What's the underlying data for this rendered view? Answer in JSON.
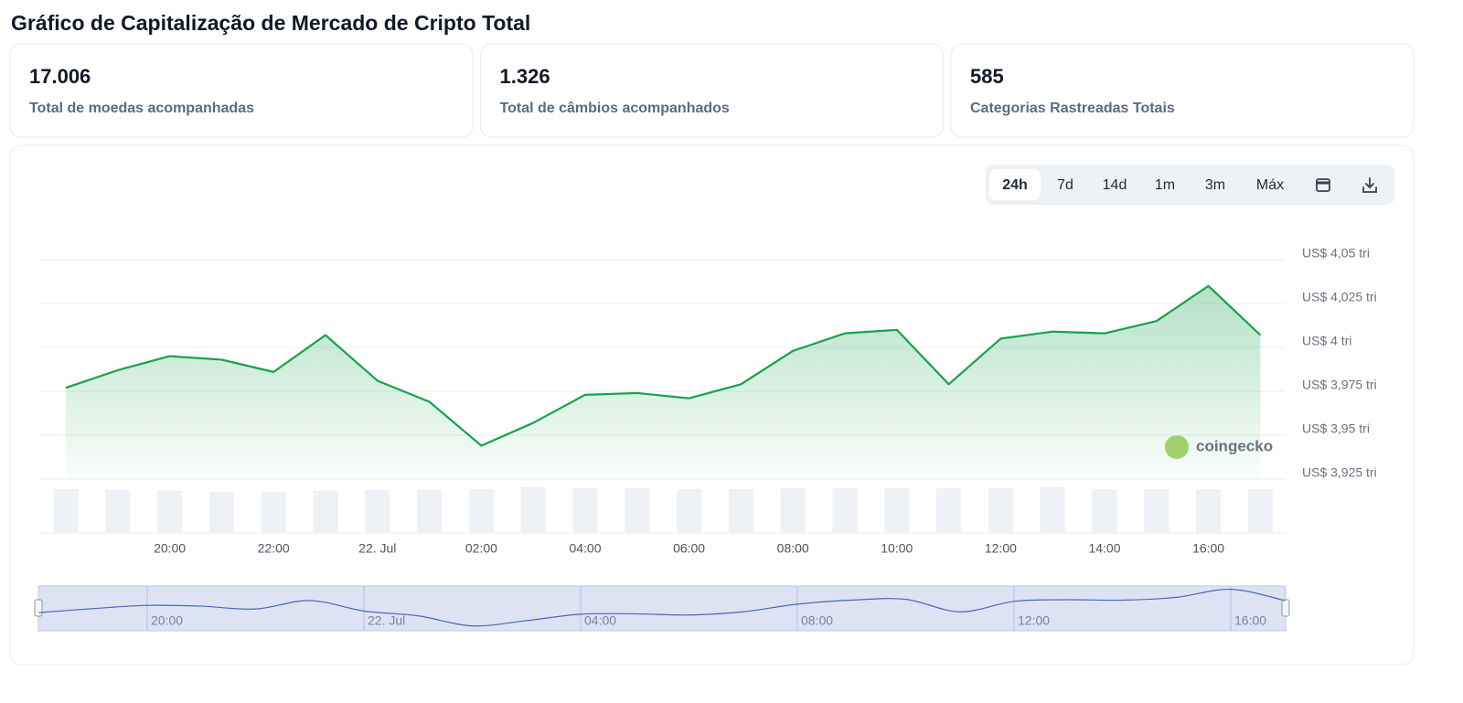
{
  "header": {
    "title": "Gráfico de Capitalização de Mercado de Cripto Total"
  },
  "stats": [
    {
      "value": "17.006",
      "label": "Total de moedas acompanhadas"
    },
    {
      "value": "1.326",
      "label": "Total de câmbios acompanhados"
    },
    {
      "value": "585",
      "label": "Categorias Rastreadas Totais"
    }
  ],
  "range_buttons": [
    "24h",
    "7d",
    "14d",
    "1m",
    "3m",
    "Máx"
  ],
  "chart_data": {
    "type": "line",
    "categories": [
      null,
      null,
      "20:00",
      null,
      "22:00",
      null,
      "22. Jul",
      null,
      "02:00",
      null,
      "04:00",
      null,
      "06:00",
      null,
      "08:00",
      null,
      "10:00",
      null,
      "12:00",
      null,
      "14:00",
      null,
      "16:00",
      null
    ],
    "values": [
      3.977,
      3.987,
      3.995,
      3.993,
      3.986,
      4.007,
      3.981,
      3.969,
      3.944,
      3.957,
      3.973,
      3.974,
      3.971,
      3.979,
      3.998,
      4.008,
      4.01,
      3.979,
      4.005,
      4.009,
      4.008,
      4.015,
      4.035,
      4.007
    ],
    "color": "#16a34a",
    "ylim": [
      3.925,
      4.05
    ],
    "yticks": [
      {
        "value": 4.05,
        "label": "US$ 4,05 tri"
      },
      {
        "value": 4.025,
        "label": "US$ 4,025 tri"
      },
      {
        "value": 4,
        "label": "US$ 4 tri"
      },
      {
        "value": 3.975,
        "label": "US$ 3,975 tri"
      },
      {
        "value": 3.95,
        "label": "US$ 3,95 tri"
      },
      {
        "value": 3.925,
        "label": "US$ 3,925 tri"
      }
    ],
    "grid": true,
    "volume_values": [
      48,
      47,
      46,
      45,
      45,
      46,
      47,
      47,
      48,
      50,
      49,
      49,
      48,
      48,
      49,
      49,
      49,
      49,
      49,
      50,
      48,
      48,
      48,
      48
    ],
    "volume_color": "#eef1f5",
    "y2lim": [
      0,
      50
    ],
    "watermark": "coingecko",
    "navigator_ticks": [
      {
        "value": 2,
        "label": "20:00"
      },
      {
        "value": 6,
        "label": "22. Jul"
      },
      {
        "value": 10,
        "label": "04:00"
      },
      {
        "value": 14,
        "label": "08:00"
      },
      {
        "value": 18,
        "label": "12:00"
      },
      {
        "value": 22,
        "label": "16:00"
      }
    ]
  }
}
